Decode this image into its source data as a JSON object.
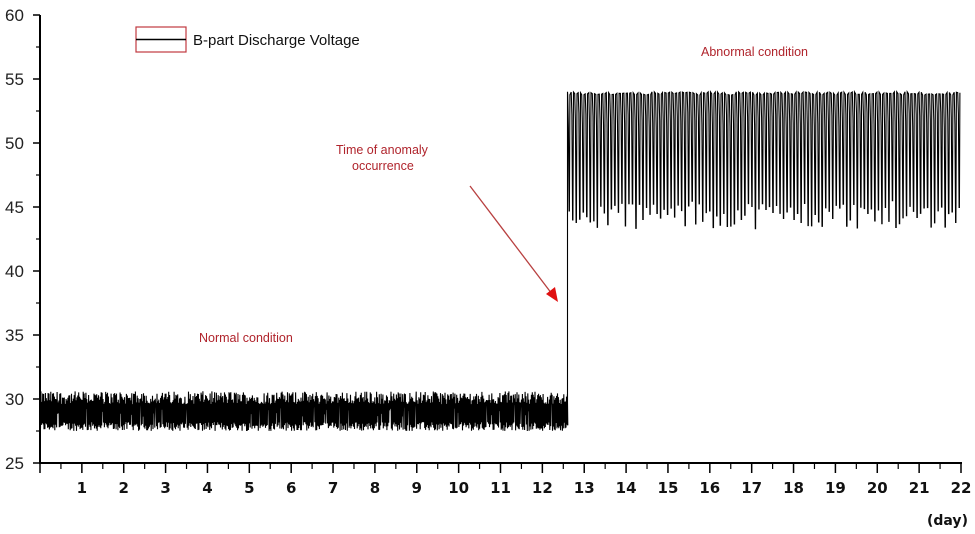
{
  "chart_data": {
    "type": "line",
    "title": "",
    "xlabel": "(day)",
    "ylabel": "",
    "xlim": [
      0,
      22
    ],
    "ylim": [
      25,
      60
    ],
    "grid": false,
    "legend_position": "top-left",
    "yticks": [
      25,
      30,
      35,
      40,
      45,
      50,
      55,
      60
    ],
    "ytick_labels": [
      "25",
      "30",
      "35",
      "40",
      "45",
      "50",
      "55",
      "60"
    ],
    "xticks": [
      1,
      2,
      3,
      4,
      5,
      6,
      7,
      8,
      9,
      10,
      11,
      12,
      13,
      14,
      15,
      16,
      17,
      18,
      19,
      20,
      21,
      22
    ],
    "xtick_labels": [
      "1",
      "2",
      "3",
      "4",
      "5",
      "6",
      "7",
      "8",
      "9",
      "10",
      "11",
      "12",
      "13",
      "14",
      "15",
      "16",
      "17",
      "18",
      "19",
      "20",
      "21",
      "22"
    ],
    "series": [
      {
        "name": "B-part Discharge Voltage",
        "color": "#000000",
        "segments": [
          {
            "label": "Normal condition",
            "x_start": 0,
            "x_end": 12.6,
            "y_min": 27.5,
            "y_max": 30.3,
            "typical_low": 27.8,
            "typical_high": 29.9,
            "behavior": "dense noisy oscillation"
          },
          {
            "label": "Abnormal condition",
            "x_start": 12.6,
            "x_end": 22,
            "y_min": 43,
            "y_max": 54,
            "typical_low": 44,
            "typical_high": 53.8,
            "mid_band": 51.8,
            "oscillations": 112,
            "behavior": "periodic charge/discharge cycling"
          }
        ]
      }
    ],
    "annotations": [
      {
        "text": "Normal condition",
        "x": 4.8,
        "y": 35
      },
      {
        "text": "Abnormal condition",
        "x": 17.1,
        "y": 56.9
      },
      {
        "text_lines": [
          "Time of anomaly",
          "occurrence"
        ],
        "x": 9.2,
        "y": 49.9,
        "arrow_from": [
          10.2,
          47.1
        ],
        "arrow_to": [
          12.5,
          37.7
        ]
      }
    ]
  },
  "legend": {
    "label": "B-part Discharge Voltage",
    "border_color": "#c0393f",
    "line_color": "#000000"
  },
  "annotation_color": "#b0242c",
  "labels": {
    "normal": "Normal condition",
    "abnormal": "Abnormal condition",
    "anomaly_line1": "Time of anomaly",
    "anomaly_line2": "occurrence",
    "x_unit": "(day)"
  }
}
